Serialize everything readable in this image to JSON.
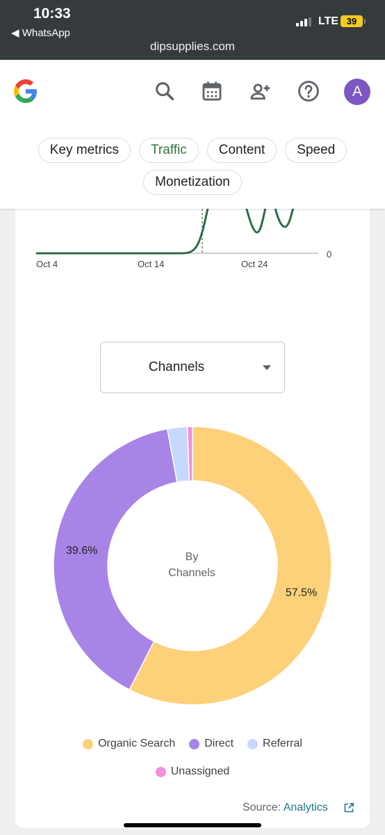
{
  "status_bar": {
    "time": "10:33",
    "back_app": "◀ WhatsApp",
    "network": "LTE",
    "battery": "39",
    "url": "dipsupplies.com"
  },
  "header": {
    "icons": [
      "google-logo",
      "search-icon",
      "calendar-icon",
      "add-user-icon",
      "help-icon"
    ],
    "avatar_letter": "A",
    "avatar_color": "#7e57c2",
    "tabs": [
      {
        "label": "Key metrics",
        "active": false
      },
      {
        "label": "Traffic",
        "active": true
      },
      {
        "label": "Content",
        "active": false
      },
      {
        "label": "Speed",
        "active": false
      },
      {
        "label": "Monetization",
        "active": false
      }
    ]
  },
  "traffic_chart": {
    "x_ticks": [
      "Oct 4",
      "Oct 14",
      "Oct 24"
    ],
    "y_tick": "0",
    "line_color": "#2e6b46"
  },
  "dimension_select": {
    "value": "Channels"
  },
  "chart_data": {
    "type": "pie",
    "center_label_line1": "By",
    "center_label_line2": "Channels",
    "series": [
      {
        "name": "Organic Search",
        "value": 57.5,
        "label": "57.5%",
        "color": "#fdd17a"
      },
      {
        "name": "Direct",
        "value": 39.6,
        "label": "39.6%",
        "color": "#a784e5"
      },
      {
        "name": "Referral",
        "value": 2.3,
        "label": "",
        "color": "#c6d8fc"
      },
      {
        "name": "Unassigned",
        "value": 0.6,
        "label": "",
        "color": "#ef91dc"
      }
    ]
  },
  "footer": {
    "source_prefix": "Source:",
    "source_link": "Analytics"
  }
}
